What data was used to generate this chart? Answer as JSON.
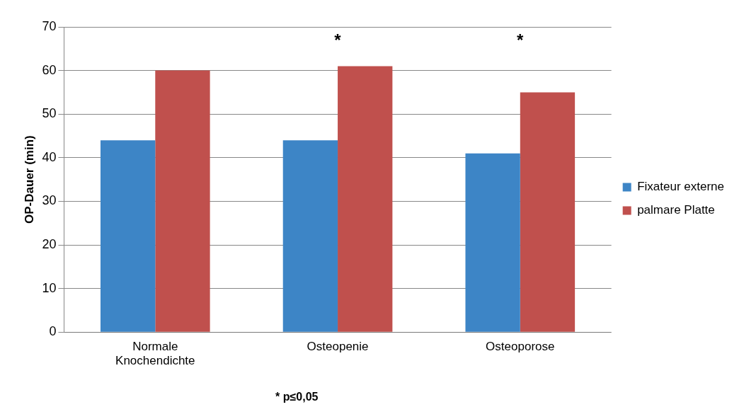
{
  "chart_data": {
    "type": "bar",
    "ylabel": "OP-Dauer (min)",
    "categories": [
      "Normale Knochendichte",
      "Osteopenie",
      "Osteoporose"
    ],
    "series": [
      {
        "name": "Fixateur externe",
        "color": "#3d85c6",
        "values": [
          44,
          44,
          41
        ]
      },
      {
        "name": "palmare Platte",
        "color": "#c0504d",
        "values": [
          60,
          61,
          55
        ]
      }
    ],
    "ylim": [
      0,
      70
    ],
    "yticks": [
      0,
      10,
      20,
      30,
      40,
      50,
      60,
      70
    ],
    "grid": "y",
    "legend": "right",
    "annotations": [
      "*",
      "*",
      "* p≤0,05"
    ]
  }
}
